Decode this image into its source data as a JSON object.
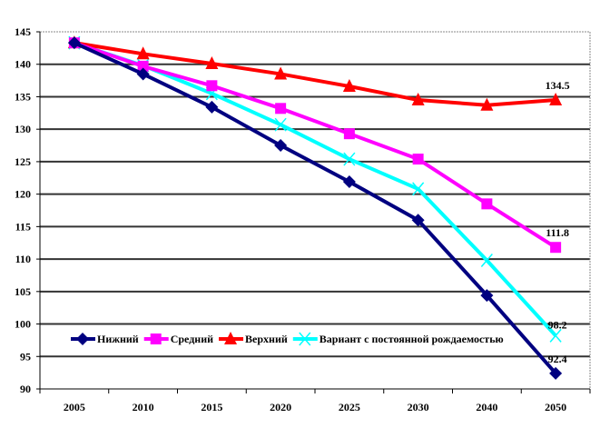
{
  "chart_data": {
    "type": "line",
    "categories": [
      "2005",
      "2010",
      "2015",
      "2020",
      "2025",
      "2030",
      "2040",
      "2050"
    ],
    "ylim": [
      90,
      145
    ],
    "yticks": [
      90,
      95,
      100,
      105,
      110,
      115,
      120,
      125,
      130,
      135,
      140,
      145
    ],
    "grid": true,
    "legend_position": "bottom-left inside plot",
    "series": [
      {
        "name": "Нижний",
        "color": "#000080",
        "marker": "diamond",
        "values": [
          143.3,
          138.5,
          133.4,
          127.5,
          121.9,
          116.0,
          104.4,
          92.4
        ],
        "end_label": "92.4"
      },
      {
        "name": "Средний",
        "color": "#FF00FF",
        "marker": "square",
        "values": [
          143.3,
          139.7,
          136.7,
          133.2,
          129.3,
          125.4,
          118.5,
          111.8
        ],
        "end_label": "111.8"
      },
      {
        "name": "Верхний",
        "color": "#FF0000",
        "marker": "triangle",
        "values": [
          143.3,
          141.6,
          140.1,
          138.5,
          136.6,
          134.5,
          133.7,
          134.5
        ],
        "end_label": "134.5"
      },
      {
        "name": "Вариант с постоянной рождаемостью",
        "color": "#00FFFF",
        "marker": "x",
        "values": [
          143.3,
          139.8,
          135.5,
          130.7,
          125.4,
          120.8,
          109.8,
          98.2
        ],
        "end_label": "98.2"
      }
    ]
  }
}
